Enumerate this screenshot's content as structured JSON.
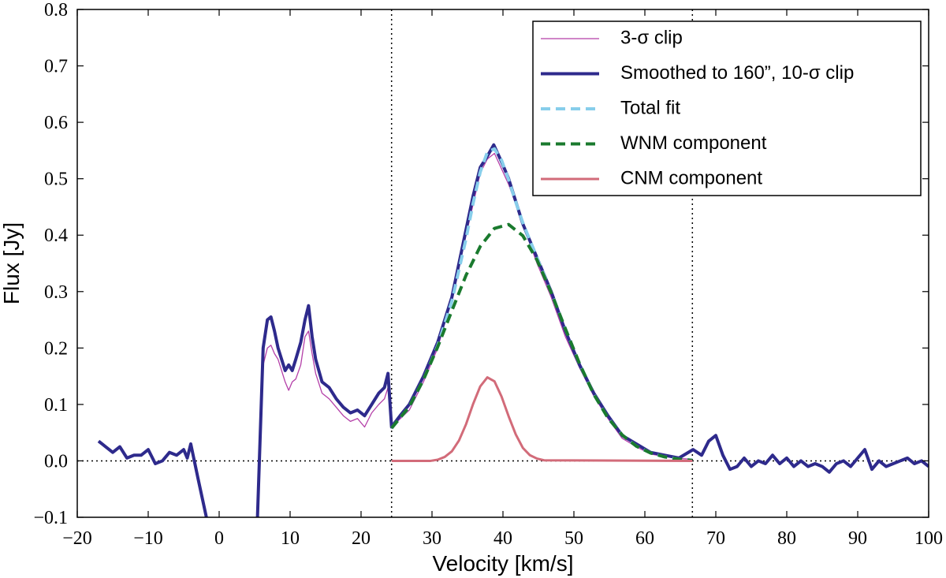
{
  "chart_data": {
    "type": "line",
    "xlabel": "Velocity [km/s]",
    "ylabel": "Flux [Jy]",
    "xlim": [
      -20,
      100
    ],
    "ylim": [
      -0.1,
      0.8
    ],
    "xticks": [
      {
        "value": -20,
        "label": "−20"
      },
      {
        "value": -10,
        "label": "−10"
      },
      0,
      10,
      20,
      30,
      40,
      50,
      60,
      70,
      80,
      90,
      100
    ],
    "yticks": [
      {
        "value": -0.1,
        "label": "−0.1"
      },
      {
        "value": 0,
        "label": "0.0"
      },
      0.1,
      0.2,
      0.3,
      0.4,
      0.5,
      0.6,
      0.7,
      0.8
    ],
    "vlines": [
      24.3,
      66.7
    ],
    "hlines": [
      0
    ],
    "legend": "upper right",
    "series": [
      {
        "name": "3-σ clip",
        "color": "#b43fa8",
        "linewidth": 1.3,
        "x": [
          5.4,
          6.2,
          6.8,
          7.3,
          7.8,
          8.3,
          8.8,
          9.3,
          9.8,
          10.3,
          10.8,
          11.5,
          12.1,
          12.6,
          13.1,
          13.6,
          14.5,
          15.5,
          16.5,
          17.5,
          18.5,
          19.5,
          20.5,
          21.5,
          22.5,
          23.3,
          23.8,
          24.3,
          26.8,
          28.8,
          30.8,
          32.8,
          34.8,
          36.8,
          37.8,
          38.8,
          40.8,
          42.8,
          44.8,
          46.8,
          48.8,
          50.8,
          52.8,
          54.8,
          56.8,
          58.8,
          60.8,
          62.8,
          64.8,
          66.7
        ],
        "values": [
          -0.1,
          0.17,
          0.2,
          0.205,
          0.19,
          0.18,
          0.16,
          0.14,
          0.125,
          0.14,
          0.145,
          0.17,
          0.22,
          0.23,
          0.19,
          0.155,
          0.12,
          0.11,
          0.095,
          0.08,
          0.07,
          0.075,
          0.06,
          0.085,
          0.1,
          0.11,
          0.13,
          0.06,
          0.09,
          0.14,
          0.2,
          0.29,
          0.4,
          0.51,
          0.535,
          0.545,
          0.49,
          0.42,
          0.35,
          0.29,
          0.22,
          0.165,
          0.115,
          0.075,
          0.04,
          0.025,
          0.012,
          0.008,
          0.004,
          0.003
        ]
      },
      {
        "name": "Smoothed to 160”, 10-σ clip",
        "color": "#2e2a8c",
        "linewidth": 4,
        "x": [
          -17,
          -16,
          -15,
          -14,
          -13,
          -12,
          -11,
          -10,
          -9,
          -8,
          -7,
          -6,
          -5,
          -4.5,
          -4,
          -3,
          -1.8,
          1.5,
          5.4,
          6.2,
          6.8,
          7.3,
          7.8,
          8.3,
          8.8,
          9.3,
          9.8,
          10.3,
          10.8,
          11.5,
          12.1,
          12.6,
          13.1,
          13.6,
          14.5,
          15.5,
          16.5,
          17.5,
          18.5,
          19.5,
          20.5,
          21.5,
          22.5,
          23.3,
          23.8,
          24.3,
          25.5,
          26.8,
          28.8,
          30.8,
          32.8,
          34.8,
          35.8,
          36.8,
          37.8,
          38.7,
          39.8,
          40.8,
          41.8,
          42.8,
          44.8,
          46.8,
          48.8,
          50.8,
          52.8,
          54.8,
          56.8,
          58.8,
          60.8,
          62.8,
          64.8,
          66.8,
          68,
          69,
          70,
          71,
          72,
          73,
          74,
          75,
          76,
          77,
          78,
          79,
          80,
          81,
          82,
          83,
          84,
          85,
          86,
          87,
          88,
          89,
          90,
          91,
          92,
          93,
          94,
          95,
          96,
          97,
          98,
          99,
          100
        ],
        "values": [
          0.035,
          0.025,
          0.015,
          0.025,
          0.005,
          0.01,
          0.01,
          0.02,
          -0.005,
          0.0,
          0.015,
          0.01,
          0.02,
          0.005,
          0.03,
          -0.03,
          -0.1,
          null,
          -0.1,
          0.2,
          0.25,
          0.255,
          0.23,
          0.2,
          0.18,
          0.16,
          0.17,
          0.16,
          0.18,
          0.21,
          0.25,
          0.275,
          0.22,
          0.18,
          0.14,
          0.13,
          0.11,
          0.095,
          0.085,
          0.09,
          0.08,
          0.1,
          0.12,
          0.13,
          0.155,
          0.06,
          0.08,
          0.1,
          0.15,
          0.21,
          0.29,
          0.41,
          0.47,
          0.52,
          0.54,
          0.56,
          0.53,
          0.5,
          0.46,
          0.42,
          0.36,
          0.3,
          0.23,
          0.17,
          0.12,
          0.08,
          0.045,
          0.03,
          0.015,
          0.01,
          0.005,
          0.02,
          0.01,
          0.035,
          0.045,
          0.01,
          -0.015,
          -0.01,
          0.005,
          -0.01,
          0.0,
          -0.005,
          0.01,
          -0.005,
          0.005,
          -0.01,
          0.0,
          -0.01,
          -0.005,
          -0.01,
          -0.02,
          -0.005,
          0.0,
          -0.01,
          0.005,
          0.02,
          -0.015,
          0.0,
          -0.01,
          -0.005,
          0.0,
          0.005,
          -0.005,
          0.0,
          -0.01
        ]
      },
      {
        "name": "Total fit",
        "color": "#87ceeb",
        "linewidth": 4,
        "linestyle": "dashed",
        "x": [
          24.3,
          26.8,
          28.8,
          30.8,
          32.8,
          34.8,
          35.8,
          36.8,
          37.8,
          38.8,
          39.8,
          40.8,
          41.8,
          42.8,
          44.8,
          46.8,
          48.8,
          50.8,
          52.8,
          54.8,
          56.8,
          58.8,
          60.8,
          62.8,
          64.8,
          66.7
        ],
        "values": [
          0.058,
          0.096,
          0.144,
          0.204,
          0.283,
          0.394,
          0.457,
          0.512,
          0.547,
          0.553,
          0.533,
          0.498,
          0.459,
          0.422,
          0.36,
          0.298,
          0.234,
          0.172,
          0.118,
          0.076,
          0.046,
          0.026,
          0.014,
          0.007,
          0.003,
          0.001
        ]
      },
      {
        "name": "WNM component",
        "color": "#1a7a2e",
        "linewidth": 4,
        "linestyle": "dashed",
        "x": [
          24.3,
          26.8,
          28.8,
          30.8,
          32.8,
          34.8,
          36.8,
          38.8,
          40.8,
          42.8,
          44.8,
          46.8,
          48.8,
          50.8,
          52.8,
          54.8,
          56.8,
          58.8,
          60.8,
          62.8,
          64.8,
          66.7
        ],
        "values": [
          0.058,
          0.096,
          0.144,
          0.202,
          0.266,
          0.329,
          0.38,
          0.412,
          0.419,
          0.399,
          0.356,
          0.298,
          0.234,
          0.172,
          0.118,
          0.076,
          0.046,
          0.026,
          0.014,
          0.007,
          0.003,
          0.001
        ]
      },
      {
        "name": "CNM component",
        "color": "#d26b79",
        "linewidth": 3,
        "x": [
          24.3,
          29.8,
          30.8,
          31.8,
          32.8,
          33.8,
          34.8,
          35.8,
          36.8,
          37.8,
          38.8,
          39.8,
          40.8,
          41.8,
          42.8,
          43.8,
          44.8,
          45.8,
          66.7
        ],
        "values": [
          0,
          0,
          0.002,
          0.007,
          0.017,
          0.036,
          0.065,
          0.101,
          0.132,
          0.148,
          0.141,
          0.114,
          0.079,
          0.047,
          0.023,
          0.01,
          0.004,
          0.001,
          0
        ]
      }
    ]
  }
}
